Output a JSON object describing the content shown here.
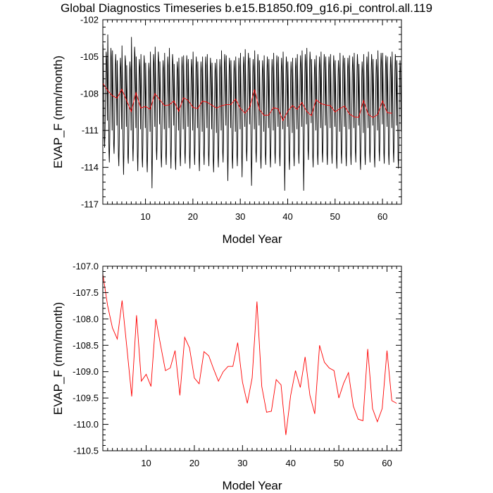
{
  "title": "Global Diagnostics Timeseries b.e15.B1850.f09_g16.pi_control.all.119",
  "colors": {
    "monthly": "#000000",
    "annual": "#ff0000",
    "frame": "#000000"
  },
  "chart_data": [
    {
      "type": "line",
      "xlabel": "Model Year",
      "ylabel": "EVAP_F (mm/month)",
      "xlim": [
        1,
        64
      ],
      "ylim": [
        -117,
        -102
      ],
      "xticks": [
        10,
        20,
        30,
        40,
        50,
        60
      ],
      "yticks": [
        -117,
        -114,
        -111,
        -108,
        -105,
        -102
      ],
      "ytick_labels": [
        "-117",
        "-114",
        "-111",
        "-108",
        "-105",
        "-102"
      ],
      "grid": false,
      "series": [
        {
          "color": "#000000",
          "description_values": "monthly values, x in fractional model years",
          "x_start": 1.0417,
          "x_step": 0.08333,
          "values": [
            -104.0,
            -106.3,
            -109.1,
            -111.6,
            -112.4,
            -111.2,
            -108.7,
            -106.1,
            -104.6,
            -105.2,
            -107.4,
            -110.2,
            -103.2,
            -106.0,
            -109.5,
            -112.7,
            -113.6,
            -112.0,
            -108.9,
            -105.9,
            -104.3,
            -105.0,
            -107.8,
            -111.0,
            -104.5,
            -106.8,
            -109.9,
            -112.2,
            -112.9,
            -111.3,
            -108.5,
            -106.0,
            -104.8,
            -105.7,
            -108.0,
            -110.6,
            -105.3,
            -107.2,
            -110.4,
            -113.1,
            -113.9,
            -112.2,
            -109.0,
            -106.4,
            -105.1,
            -105.9,
            -108.3,
            -110.9,
            -104.1,
            -106.5,
            -109.8,
            -112.9,
            -114.6,
            -112.8,
            -109.4,
            -106.4,
            -104.9,
            -105.4,
            -107.9,
            -110.7,
            -105.7,
            -107.8,
            -110.6,
            -113.2,
            -113.7,
            -111.9,
            -109.1,
            -106.6,
            -105.4,
            -106.0,
            -108.3,
            -111.0,
            -103.4,
            -105.8,
            -109.2,
            -112.2,
            -113.5,
            -112.0,
            -108.8,
            -106.0,
            -104.2,
            -104.9,
            -107.6,
            -110.8,
            -105.0,
            -107.1,
            -110.3,
            -113.0,
            -114.3,
            -112.5,
            -109.3,
            -106.5,
            -105.2,
            -105.8,
            -108.1,
            -110.9,
            -104.8,
            -106.9,
            -110.1,
            -113.3,
            -114.0,
            -112.1,
            -108.9,
            -106.2,
            -104.9,
            -105.6,
            -108.0,
            -110.8,
            -105.5,
            -107.6,
            -110.7,
            -113.5,
            -114.4,
            -112.7,
            -109.5,
            -106.8,
            -105.5,
            -106.1,
            -108.5,
            -111.1,
            -104.6,
            -106.8,
            -110.0,
            -113.0,
            -115.7,
            -113.1,
            -109.2,
            -106.2,
            -104.8,
            -105.5,
            -107.9,
            -110.7,
            -104.2,
            -106.4,
            -109.6,
            -112.6,
            -113.4,
            -111.8,
            -108.7,
            -106.0,
            -104.6,
            -105.3,
            -107.7,
            -110.5,
            -105.4,
            -107.3,
            -110.5,
            -113.2,
            -114.0,
            -112.4,
            -109.2,
            -106.6,
            -105.3,
            -105.9,
            -108.2,
            -110.9,
            -104.7,
            -106.9,
            -110.2,
            -113.1,
            -113.8,
            -112.0,
            -108.9,
            -106.3,
            -105.0,
            -105.7,
            -108.1,
            -110.8,
            -104.3,
            -106.6,
            -109.8,
            -112.8,
            -114.1,
            -112.3,
            -109.1,
            -106.3,
            -104.8,
            -105.4,
            -107.9,
            -110.6,
            -105.6,
            -107.7,
            -110.8,
            -113.4,
            -114.2,
            -112.5,
            -109.4,
            -106.7,
            -105.4,
            -106.0,
            -108.4,
            -111.0,
            -105.1,
            -107.0,
            -110.3,
            -113.1,
            -113.9,
            -112.1,
            -109.0,
            -106.3,
            -105.0,
            -105.8,
            -108.2,
            -110.9,
            -104.9,
            -106.9,
            -110.1,
            -112.9,
            -113.7,
            -112.0,
            -108.9,
            -106.2,
            -104.9,
            -105.6,
            -108.0,
            -110.7,
            -105.2,
            -107.2,
            -110.4,
            -113.2,
            -114.1,
            -112.4,
            -109.2,
            -106.5,
            -105.2,
            -105.9,
            -108.3,
            -111.0,
            -104.6,
            -106.8,
            -110.0,
            -112.9,
            -113.8,
            -112.1,
            -109.0,
            -106.3,
            -105.0,
            -105.7,
            -108.1,
            -110.8,
            -105.4,
            -107.4,
            -110.6,
            -113.4,
            -114.3,
            -112.6,
            -109.4,
            -106.7,
            -105.4,
            -106.0,
            -108.4,
            -111.1,
            -105.0,
            -107.0,
            -110.2,
            -113.0,
            -113.8,
            -112.1,
            -109.0,
            -106.3,
            -105.0,
            -105.7,
            -108.1,
            -110.8,
            -104.8,
            -106.9,
            -110.1,
            -113.0,
            -113.9,
            -112.2,
            -109.1,
            -106.4,
            -105.1,
            -105.8,
            -108.2,
            -110.9,
            -105.5,
            -107.5,
            -110.7,
            -113.5,
            -114.4,
            -112.7,
            -109.5,
            -106.8,
            -105.5,
            -106.1,
            -108.5,
            -111.2,
            -105.2,
            -107.2,
            -110.4,
            -113.2,
            -114.0,
            -112.3,
            -109.2,
            -106.5,
            -105.2,
            -105.9,
            -108.3,
            -111.0,
            -104.5,
            -106.7,
            -109.9,
            -112.8,
            -113.6,
            -111.9,
            -108.8,
            -106.1,
            -104.8,
            -105.5,
            -107.9,
            -110.6,
            -104.9,
            -106.9,
            -110.1,
            -113.0,
            -115.1,
            -112.9,
            -109.3,
            -106.5,
            -105.1,
            -105.7,
            -108.1,
            -110.8,
            -105.3,
            -107.3,
            -110.5,
            -113.3,
            -114.1,
            -112.4,
            -109.3,
            -106.6,
            -105.3,
            -106.0,
            -108.4,
            -111.1,
            -105.0,
            -107.0,
            -110.2,
            -113.1,
            -113.9,
            -112.2,
            -109.1,
            -106.4,
            -105.1,
            -105.8,
            -108.2,
            -110.9,
            -104.7,
            -106.8,
            -110.0,
            -112.9,
            -114.8,
            -112.7,
            -109.2,
            -106.4,
            -105.0,
            -105.6,
            -108.0,
            -110.7,
            -104.4,
            -106.5,
            -109.7,
            -112.7,
            -113.5,
            -111.8,
            -108.7,
            -106.0,
            -104.7,
            -105.4,
            -107.8,
            -110.5,
            -105.1,
            -107.1,
            -110.3,
            -113.1,
            -115.5,
            -113.3,
            -109.5,
            -106.6,
            -105.2,
            -105.8,
            -108.2,
            -110.9,
            -104.5,
            -106.6,
            -109.8,
            -112.8,
            -113.6,
            -111.9,
            -108.8,
            -106.1,
            -104.8,
            -105.5,
            -107.9,
            -110.6,
            -105.3,
            -107.3,
            -110.5,
            -113.3,
            -114.1,
            -112.4,
            -109.3,
            -106.6,
            -105.3,
            -106.0,
            -108.4,
            -111.1,
            -104.9,
            -107.0,
            -110.2,
            -113.0,
            -113.8,
            -112.1,
            -109.0,
            -106.3,
            -105.0,
            -105.7,
            -108.1,
            -110.8,
            -105.2,
            -107.2,
            -110.4,
            -113.2,
            -114.0,
            -112.3,
            -109.2,
            -106.5,
            -105.2,
            -105.9,
            -108.3,
            -111.0,
            -104.7,
            -106.8,
            -110.0,
            -112.9,
            -113.7,
            -112.0,
            -108.9,
            -106.2,
            -104.9,
            -105.6,
            -108.0,
            -110.7,
            -105.0,
            -107.1,
            -110.3,
            -113.1,
            -113.9,
            -112.2,
            -109.1,
            -106.4,
            -105.1,
            -105.8,
            -108.2,
            -110.9,
            -104.6,
            -106.7,
            -109.9,
            -112.8,
            -115.9,
            -113.4,
            -109.4,
            -106.5,
            -105.0,
            -105.6,
            -108.0,
            -110.7,
            -105.4,
            -107.4,
            -110.6,
            -113.4,
            -114.2,
            -112.5,
            -109.4,
            -106.7,
            -105.4,
            -106.1,
            -108.5,
            -111.2,
            -105.1,
            -107.1,
            -110.3,
            -113.1,
            -113.9,
            -112.2,
            -109.1,
            -106.4,
            -105.1,
            -105.8,
            -108.2,
            -110.9,
            -104.8,
            -106.9,
            -110.1,
            -112.9,
            -113.7,
            -112.0,
            -108.9,
            -106.2,
            -104.9,
            -105.6,
            -108.0,
            -110.7,
            -104.5,
            -106.6,
            -109.8,
            -112.7,
            -115.9,
            -113.4,
            -109.3,
            -106.3,
            -104.8,
            -105.4,
            -107.8,
            -110.5,
            -104.3,
            -106.5,
            -109.7,
            -112.6,
            -113.4,
            -111.7,
            -108.6,
            -105.9,
            -104.6,
            -105.3,
            -107.7,
            -110.4,
            -105.2,
            -107.2,
            -110.4,
            -113.2,
            -114.0,
            -112.3,
            -109.2,
            -106.5,
            -105.2,
            -105.9,
            -108.3,
            -111.0,
            -104.9,
            -107.0,
            -110.2,
            -113.0,
            -113.8,
            -112.1,
            -109.0,
            -106.3,
            -105.0,
            -105.7,
            -108.1,
            -110.8,
            -104.6,
            -106.7,
            -109.9,
            -112.8,
            -113.6,
            -111.9,
            -108.8,
            -106.1,
            -104.8,
            -105.5,
            -107.9,
            -110.6,
            -105.0,
            -107.0,
            -110.2,
            -113.0,
            -113.8,
            -112.1,
            -109.0,
            -106.3,
            -105.0,
            -105.7,
            -108.1,
            -110.8,
            -104.8,
            -106.8,
            -110.0,
            -112.9,
            -113.7,
            -112.0,
            -108.9,
            -106.2,
            -104.9,
            -105.6,
            -108.0,
            -110.7,
            -105.3,
            -107.3,
            -110.5,
            -113.3,
            -114.1,
            -112.4,
            -109.3,
            -106.6,
            -105.3,
            -106.0,
            -108.4,
            -111.1,
            -104.7,
            -106.8,
            -110.0,
            -112.9,
            -113.7,
            -112.0,
            -108.9,
            -106.2,
            -104.9,
            -105.6,
            -108.0,
            -110.7,
            -105.1,
            -107.1,
            -110.3,
            -113.1,
            -113.9,
            -112.2,
            -109.1,
            -106.4,
            -105.1,
            -105.8,
            -108.2,
            -110.9,
            -104.9,
            -106.9,
            -110.1,
            -113.0,
            -113.8,
            -112.1,
            -109.0,
            -106.3,
            -105.0,
            -105.7,
            -108.1,
            -110.8,
            -104.7,
            -106.8,
            -110.0,
            -112.8,
            -113.6,
            -111.9,
            -108.8,
            -106.1,
            -104.8,
            -105.5,
            -107.9,
            -110.6,
            -105.6,
            -107.5,
            -110.7,
            -113.4,
            -114.2,
            -112.5,
            -109.4,
            -106.7,
            -105.4,
            -106.1,
            -108.5,
            -111.2,
            -104.8,
            -106.9,
            -110.1,
            -113.0,
            -113.8,
            -112.1,
            -109.0,
            -106.3,
            -105.0,
            -105.7,
            -108.1,
            -110.8,
            -104.6,
            -106.7,
            -109.9,
            -112.8,
            -113.6,
            -111.9,
            -108.8,
            -106.1,
            -104.8,
            -105.5,
            -107.9,
            -110.6,
            -105.2,
            -107.2,
            -110.4,
            -113.2,
            -114.0,
            -112.3,
            -109.2,
            -106.5,
            -105.2,
            -105.9,
            -108.3,
            -111.0,
            -104.5,
            -106.6,
            -109.8,
            -112.7,
            -113.5,
            -111.8,
            -108.7,
            -106.0,
            -104.7,
            -105.4,
            -107.8,
            -110.5,
            -104.7,
            -106.8,
            -110.0,
            -112.9,
            -113.7,
            -112.0,
            -108.9,
            -106.2,
            -104.9,
            -105.6,
            -108.0,
            -110.7,
            -105.0,
            -107.0,
            -110.2,
            -113.0,
            -113.8,
            -112.1,
            -109.0,
            -106.3,
            -105.0,
            -105.7,
            -108.1,
            -110.8,
            -104.6,
            -106.7,
            -109.9,
            -112.8,
            -113.6,
            -111.9,
            -108.8,
            -106.1,
            -104.8,
            -105.5,
            -107.9,
            -110.6,
            -105.3,
            -107.3,
            -110.5,
            -113.3,
            -114.1,
            -112.4,
            -109.3,
            -106.6,
            -105.3,
            -106.0,
            -108.4,
            -111.1
          ]
        },
        {
          "color": "#ff0000",
          "x_start": 1,
          "x_step": 1,
          "values": [
            -107.15,
            -107.75,
            -108.17,
            -108.38,
            -107.65,
            -108.55,
            -109.47,
            -107.93,
            -109.18,
            -109.05,
            -109.28,
            -108.0,
            -108.5,
            -108.98,
            -108.93,
            -108.6,
            -109.45,
            -108.35,
            -108.55,
            -109.12,
            -109.23,
            -108.62,
            -108.7,
            -108.95,
            -109.18,
            -109.0,
            -108.9,
            -108.9,
            -108.45,
            -109.2,
            -109.6,
            -109.12,
            -107.67,
            -109.28,
            -109.77,
            -109.75,
            -109.15,
            -109.25,
            -110.2,
            -109.45,
            -108.98,
            -109.3,
            -108.72,
            -109.45,
            -109.8,
            -108.5,
            -108.82,
            -108.93,
            -108.98,
            -109.5,
            -109.22,
            -109.02,
            -109.65,
            -109.9,
            -109.93,
            -108.57,
            -109.7,
            -109.95,
            -109.7,
            -108.6,
            -109.55,
            -109.6
          ]
        }
      ]
    },
    {
      "type": "line",
      "xlabel": "Model Year",
      "ylabel": "EVAP_F (mm/month)",
      "xlim": [
        1,
        63
      ],
      "ylim": [
        -110.5,
        -107.0
      ],
      "xticks": [
        10,
        20,
        30,
        40,
        50,
        60
      ],
      "yticks": [
        -110.5,
        -110.0,
        -109.5,
        -109.0,
        -108.5,
        -108.0,
        -107.5,
        -107.0
      ],
      "ytick_labels": [
        "-110.5",
        "-110.0",
        "-109.5",
        "-109.0",
        "-108.5",
        "-108.0",
        "-107.5",
        "-107.0"
      ],
      "grid": false,
      "series": [
        {
          "color": "#ff0000",
          "x_start": 1,
          "x_step": 1,
          "values": [
            -107.15,
            -107.75,
            -108.17,
            -108.38,
            -107.65,
            -108.55,
            -109.47,
            -107.93,
            -109.18,
            -109.05,
            -109.28,
            -108.0,
            -108.5,
            -108.98,
            -108.93,
            -108.6,
            -109.45,
            -108.35,
            -108.55,
            -109.12,
            -109.23,
            -108.62,
            -108.7,
            -108.95,
            -109.18,
            -109.0,
            -108.9,
            -108.9,
            -108.45,
            -109.2,
            -109.6,
            -109.12,
            -107.67,
            -109.28,
            -109.77,
            -109.75,
            -109.15,
            -109.25,
            -110.2,
            -109.45,
            -108.98,
            -109.3,
            -108.72,
            -109.45,
            -109.8,
            -108.5,
            -108.82,
            -108.93,
            -108.98,
            -109.5,
            -109.22,
            -109.02,
            -109.65,
            -109.9,
            -109.93,
            -108.57,
            -109.7,
            -109.95,
            -109.7,
            -108.6,
            -109.55,
            -109.6
          ]
        }
      ]
    }
  ]
}
